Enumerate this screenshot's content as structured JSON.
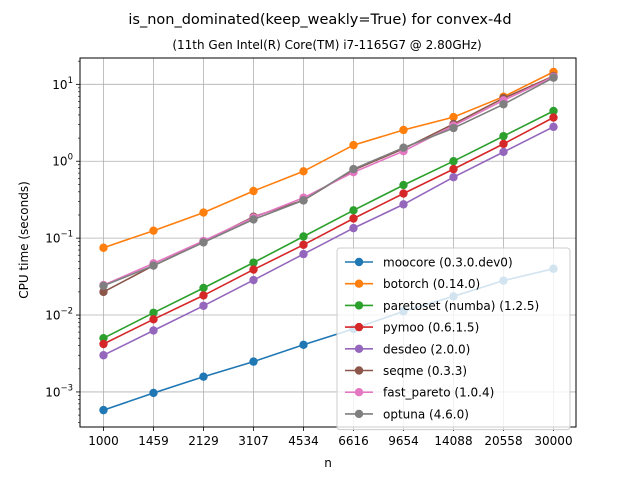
{
  "chart_data": {
    "type": "line",
    "title": "is_non_dominated(keep_weakly=True) for convex-4d",
    "subtitle": "(11th Gen Intel(R) Core(TM) i7-1165G7 @ 2.80GHz)",
    "xlabel": "n",
    "ylabel": "CPU time (seconds)",
    "x_scale": "categorical",
    "y_scale": "log",
    "ylim": [
      0.00035,
      22
    ],
    "grid": true,
    "legend_position": "lower-right",
    "categories": [
      "1000",
      "1459",
      "2129",
      "3107",
      "4534",
      "6616",
      "9654",
      "14088",
      "20558",
      "30000"
    ],
    "y_ticks": [
      {
        "value": 0.001,
        "base": "10",
        "exp": "−3"
      },
      {
        "value": 0.01,
        "base": "10",
        "exp": "−2"
      },
      {
        "value": 0.1,
        "base": "10",
        "exp": "−1"
      },
      {
        "value": 1,
        "base": "10",
        "exp": "0"
      },
      {
        "value": 10,
        "base": "10",
        "exp": "1"
      }
    ],
    "series": [
      {
        "name": "moocore (0.3.0.dev0)",
        "color": "#1f77b4",
        "values": [
          0.00058,
          0.00097,
          0.00158,
          0.00248,
          0.0041,
          0.0066,
          0.0112,
          0.0175,
          0.028,
          0.04
        ]
      },
      {
        "name": "botorch (0.14.0)",
        "color": "#ff7f0e",
        "values": [
          0.075,
          0.125,
          0.215,
          0.41,
          0.74,
          1.62,
          2.55,
          3.75,
          6.9,
          14.5
        ]
      },
      {
        "name": "paretoset (numba) (1.2.5)",
        "color": "#2ca02c",
        "values": [
          0.005,
          0.0107,
          0.0225,
          0.048,
          0.105,
          0.23,
          0.49,
          1.0,
          2.12,
          4.5
        ]
      },
      {
        "name": "pymoo (0.6.1.5)",
        "color": "#d62728",
        "values": [
          0.0042,
          0.0088,
          0.018,
          0.039,
          0.082,
          0.18,
          0.38,
          0.79,
          1.68,
          3.7
        ]
      },
      {
        "name": "desdeo (2.0.0)",
        "color": "#9467bd",
        "values": [
          0.003,
          0.0063,
          0.0132,
          0.0285,
          0.062,
          0.135,
          0.275,
          0.62,
          1.32,
          2.8
        ]
      },
      {
        "name": "seqme (0.3.3)",
        "color": "#8c564b",
        "values": [
          0.02,
          0.044,
          0.09,
          0.19,
          0.31,
          0.77,
          1.45,
          3.05,
          6.6,
          12.8
        ]
      },
      {
        "name": "fast_pareto (1.0.4)",
        "color": "#e377c2",
        "values": [
          0.0245,
          0.047,
          0.092,
          0.185,
          0.335,
          0.72,
          1.35,
          2.9,
          6.2,
          12.5
        ]
      },
      {
        "name": "optuna (4.6.0)",
        "color": "#7f7f7f",
        "values": [
          0.024,
          0.044,
          0.088,
          0.175,
          0.31,
          0.79,
          1.5,
          2.7,
          5.5,
          12.2
        ]
      }
    ]
  }
}
